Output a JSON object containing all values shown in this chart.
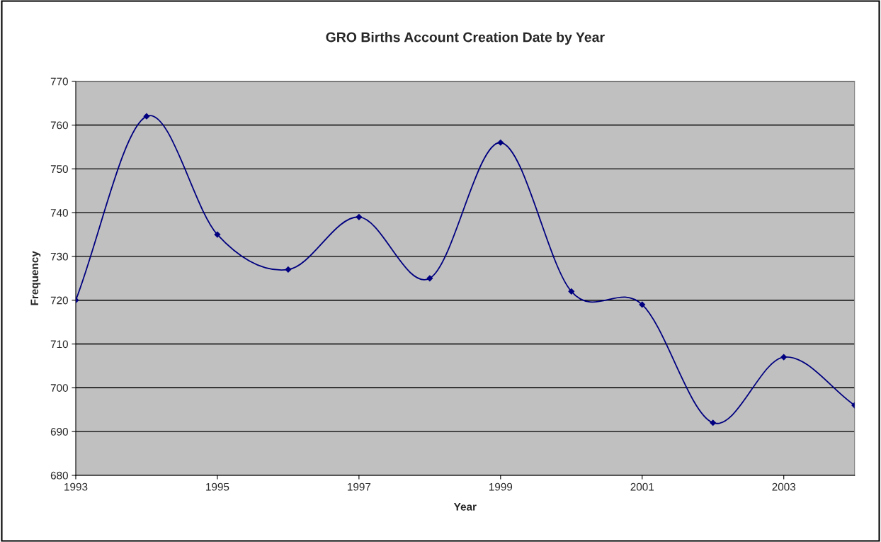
{
  "chart_data": {
    "type": "line",
    "title": "GRO Births Account Creation Date by Year",
    "xlabel": "Year",
    "ylabel": "Frequency",
    "x": [
      1993,
      1994,
      1995,
      1996,
      1997,
      1998,
      1999,
      2000,
      2001,
      2002,
      2003,
      2004
    ],
    "series": [
      {
        "color": "#000080",
        "values": [
          720,
          762,
          735,
          727,
          739,
          725,
          756,
          722,
          719,
          692,
          707,
          696
        ]
      }
    ],
    "xlim": [
      1993,
      2004
    ],
    "xticks": [
      1993,
      1995,
      1997,
      1999,
      2001,
      2003
    ],
    "ylim": [
      680,
      770
    ],
    "yticks": [
      680,
      690,
      700,
      710,
      720,
      730,
      740,
      750,
      760,
      770
    ],
    "grid": "y",
    "marker": "diamond",
    "line_style": "solid",
    "legend": false
  }
}
